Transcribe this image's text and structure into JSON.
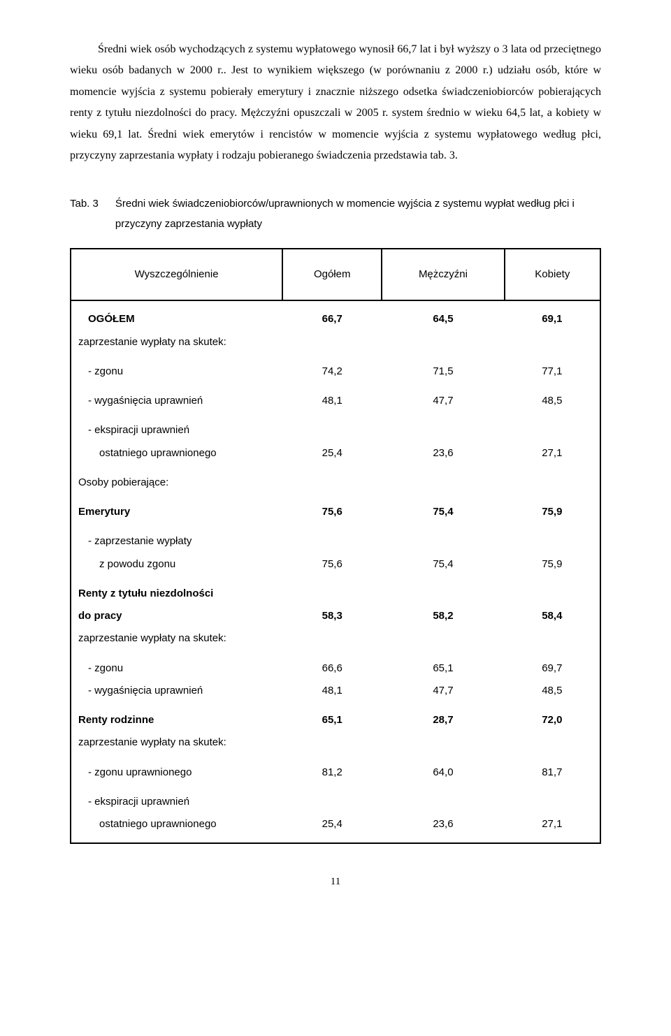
{
  "paragraph": "Średni wiek osób wychodzących z systemu wypłatowego wynosił 66,7 lat i był wyższy o 3 lata od przeciętnego wieku osób badanych w 2000 r.. Jest to wynikiem większego (w porównaniu z 2000 r.) udziału osób, które w momencie wyjścia z systemu pobierały emerytury i znacznie niższego odsetka świadczeniobiorców pobierających renty z tytułu niezdolności do pracy. Mężczyźni opuszczali w 2005 r. system średnio w wieku 64,5 lat, a kobiety w wieku 69,1 lat. Średni wiek emerytów i rencistów w momencie wyjścia z systemu wypłatowego według płci, przyczyny zaprzestania wypłaty i rodzaju pobieranego świadczenia przedstawia tab. 3.",
  "table_caption": {
    "number": "Tab. 3",
    "title": "Średni wiek świadczeniobiorców/uprawnionych w momencie wyjścia z systemu wypłat według płci i przyczyny zaprzestania wypłaty"
  },
  "table": {
    "headers": [
      "Wyszczególnienie",
      "Ogółem",
      "Mężczyźni",
      "Kobiety"
    ],
    "rows": [
      {
        "type": "spacer"
      },
      {
        "label": "OGÓŁEM",
        "bold": true,
        "indent": 1,
        "v1": "66,7",
        "v2": "64,5",
        "v3": "69,1"
      },
      {
        "type": "textonly",
        "label": "zaprzestanie wypłaty na skutek:"
      },
      {
        "type": "spacer"
      },
      {
        "label": "- zgonu",
        "indent": 1,
        "v1": "74,2",
        "v2": "71,5",
        "v3": "77,1"
      },
      {
        "type": "spacer"
      },
      {
        "label": "- wygaśnięcia uprawnień",
        "indent": 1,
        "v1": "48,1",
        "v2": "47,7",
        "v3": "48,5"
      },
      {
        "type": "spacer"
      },
      {
        "type": "textonly",
        "label": "- ekspiracji uprawnień",
        "indent": 1
      },
      {
        "label": "ostatniego uprawnionego",
        "indent": 2,
        "v1": "25,4",
        "v2": "23,6",
        "v3": "27,1"
      },
      {
        "type": "spacer"
      },
      {
        "type": "textonly",
        "label": "Osoby pobierające:"
      },
      {
        "type": "spacer"
      },
      {
        "label": "Emerytury",
        "bold": true,
        "v1": "75,6",
        "v2": "75,4",
        "v3": "75,9"
      },
      {
        "type": "spacer"
      },
      {
        "type": "textonly",
        "label": "- zaprzestanie wypłaty",
        "indent": 1
      },
      {
        "label": "z powodu zgonu",
        "indent": 2,
        "v1": "75,6",
        "v2": "75,4",
        "v3": "75,9"
      },
      {
        "type": "spacer"
      },
      {
        "type": "textonly",
        "label": "Renty z tytułu niezdolności",
        "bold": true
      },
      {
        "label": "do pracy",
        "bold": true,
        "v1": "58,3",
        "v2": "58,2",
        "v3": "58,4"
      },
      {
        "type": "textonly",
        "label": "zaprzestanie wypłaty na skutek:"
      },
      {
        "type": "spacer"
      },
      {
        "label": "- zgonu",
        "indent": 1,
        "v1": "66,6",
        "v2": "65,1",
        "v3": "69,7"
      },
      {
        "label": "- wygaśnięcia uprawnień",
        "indent": 1,
        "v1": "48,1",
        "v2": "47,7",
        "v3": "48,5"
      },
      {
        "type": "spacer"
      },
      {
        "label": "Renty rodzinne",
        "bold": true,
        "v1": "65,1",
        "v2": "28,7",
        "v3": "72,0"
      },
      {
        "type": "textonly",
        "label": "zaprzestanie wypłaty na skutek:"
      },
      {
        "type": "spacer"
      },
      {
        "label": "- zgonu uprawnionego",
        "indent": 1,
        "v1": "81,2",
        "v2": "64,0",
        "v3": "81,7"
      },
      {
        "type": "spacer"
      },
      {
        "type": "textonly",
        "label": "- ekspiracji uprawnień",
        "indent": 1
      },
      {
        "label": "ostatniego uprawnionego",
        "indent": 2,
        "v1": "25,4",
        "v2": "23,6",
        "v3": "27,1"
      },
      {
        "type": "spacer"
      }
    ]
  },
  "page_number": "11"
}
